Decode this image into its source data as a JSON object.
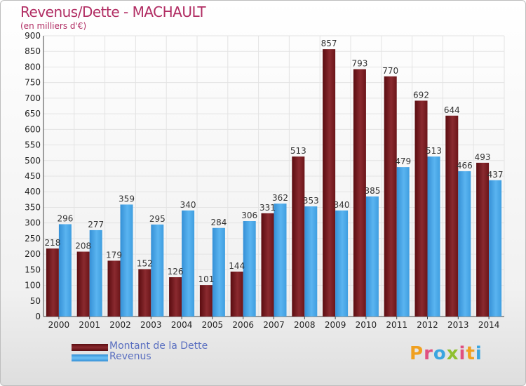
{
  "header": {
    "title": "Revenus/Dette - MACHAULT",
    "subtitle": "(en milliers d'€)"
  },
  "legend": {
    "debt_label": "Montant de la Dette",
    "revenue_label": "Revenus"
  },
  "logo": {
    "text": "Proxiti",
    "letters": [
      "P",
      "r",
      "o",
      "x",
      "i",
      "t",
      "i"
    ],
    "colors": [
      "#f0a020",
      "#e05080",
      "#3aa5e0",
      "#90c030",
      "#e05080",
      "#f0a020",
      "#3aa5e0"
    ]
  },
  "colors": {
    "debt": "#7a1a1f",
    "revenue": "#4aa7e6",
    "title": "#b12d63"
  },
  "chart_data": {
    "type": "bar",
    "categories": [
      "2000",
      "2001",
      "2002",
      "2003",
      "2004",
      "2005",
      "2006",
      "2007",
      "2008",
      "2009",
      "2010",
      "2011",
      "2012",
      "2013",
      "2014"
    ],
    "series": [
      {
        "name": "Montant de la Dette",
        "values": [
          218,
          208,
          179,
          152,
          126,
          101,
          144,
          331,
          513,
          857,
          793,
          770,
          692,
          644,
          493
        ]
      },
      {
        "name": "Revenus",
        "values": [
          296,
          277,
          359,
          295,
          340,
          284,
          306,
          362,
          353,
          340,
          385,
          479,
          513,
          466,
          437
        ]
      }
    ],
    "ylim": [
      0,
      900
    ],
    "yticks": [
      0,
      50,
      100,
      150,
      200,
      250,
      300,
      350,
      400,
      450,
      500,
      550,
      600,
      650,
      700,
      750,
      800,
      850,
      900
    ],
    "grid": true
  }
}
